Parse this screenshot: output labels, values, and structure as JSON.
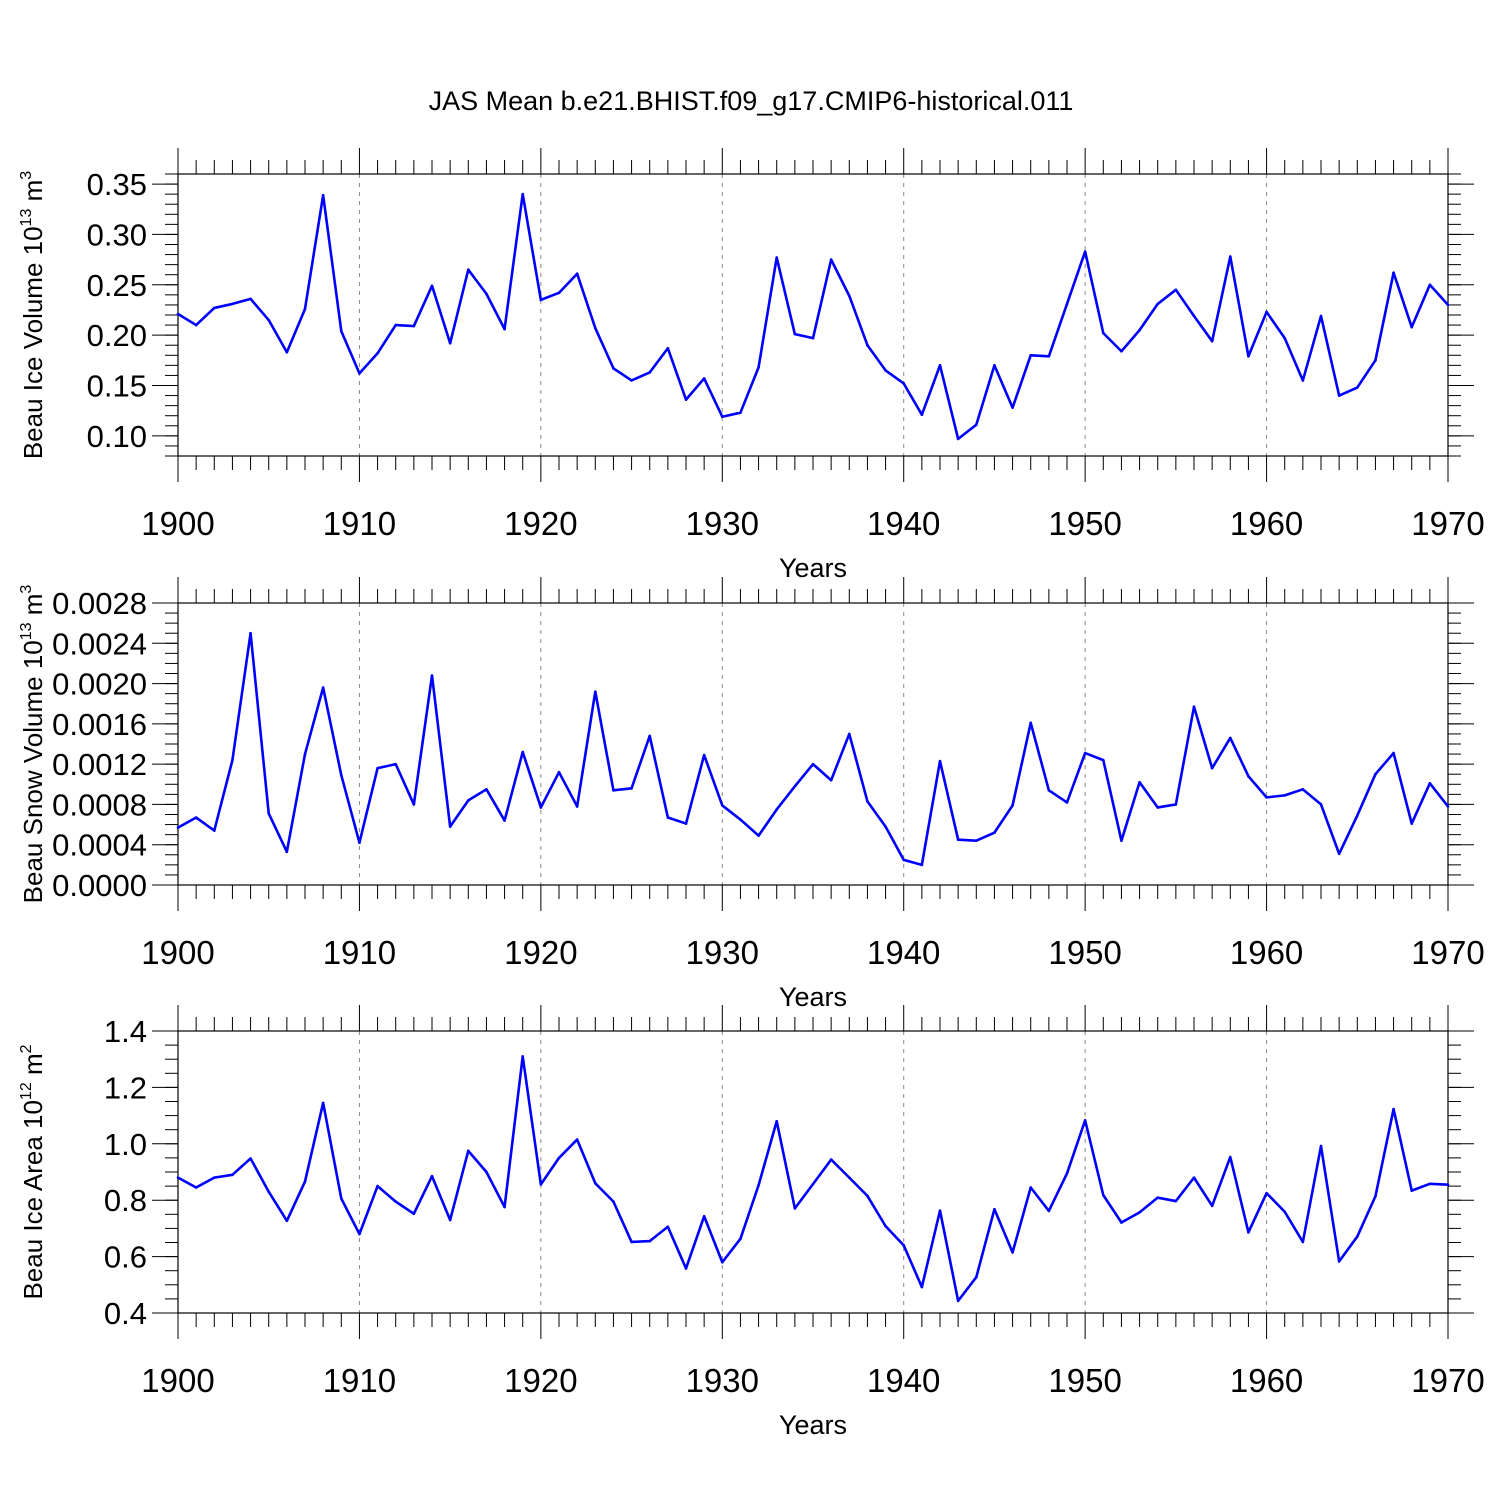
{
  "title": "JAS Mean b.e21.BHIST.f09_g17.CMIP6-historical.011",
  "colors": {
    "line": "#0000ff",
    "axis": "#000000",
    "grid": "#888888"
  },
  "chart_data": [
    {
      "type": "line",
      "ylabel_main": "Beau Ice Volume 10",
      "ylabel_exp": "13",
      "ylabel_unit": " m",
      "ylabel_unit_exp": "3",
      "xlabel": "Years",
      "xlim": [
        1900,
        1970
      ],
      "ylim": [
        0.08,
        0.36
      ],
      "yticks": [
        0.1,
        0.15,
        0.2,
        0.25,
        0.3,
        0.35
      ],
      "ytick_labels": [
        "0.10",
        "0.15",
        "0.20",
        "0.25",
        "0.30",
        "0.35"
      ],
      "yminor": 0.01,
      "xticks": [
        1900,
        1910,
        1920,
        1930,
        1940,
        1950,
        1960,
        1970
      ],
      "xtick_labels": [
        "1900",
        "1910",
        "1920",
        "1930",
        "1940",
        "1950",
        "1960",
        "1970"
      ],
      "x_start": 1900,
      "values": [
        0.221,
        0.21,
        0.227,
        0.231,
        0.236,
        0.215,
        0.183,
        0.226,
        0.339,
        0.204,
        0.162,
        0.182,
        0.21,
        0.209,
        0.249,
        0.192,
        0.265,
        0.241,
        0.206,
        0.34,
        0.235,
        0.242,
        0.261,
        0.207,
        0.167,
        0.155,
        0.163,
        0.187,
        0.136,
        0.157,
        0.119,
        0.123,
        0.168,
        0.277,
        0.201,
        0.197,
        0.275,
        0.239,
        0.19,
        0.165,
        0.152,
        0.121,
        0.17,
        0.097,
        0.111,
        0.17,
        0.128,
        0.18,
        0.179,
        0.231,
        0.283,
        0.202,
        0.184,
        0.205,
        0.231,
        0.245,
        0.219,
        0.194,
        0.278,
        0.179,
        0.223,
        0.197,
        0.155,
        0.219,
        0.14,
        0.148,
        0.175,
        0.262,
        0.208,
        0.25,
        0.23
      ]
    },
    {
      "type": "line",
      "ylabel_main": "Beau Snow Volume 10",
      "ylabel_exp": "13",
      "ylabel_unit": " m",
      "ylabel_unit_exp": "3",
      "xlabel": "Years",
      "xlim": [
        1900,
        1970
      ],
      "ylim": [
        0.0,
        0.0028
      ],
      "yticks": [
        0.0,
        0.0004,
        0.0008,
        0.0012,
        0.0016,
        0.002,
        0.0024,
        0.0028
      ],
      "ytick_labels": [
        "0.0000",
        "0.0004",
        "0.0008",
        "0.0012",
        "0.0016",
        "0.0020",
        "0.0024",
        "0.0028"
      ],
      "yminor": 0.0001,
      "xticks": [
        1900,
        1910,
        1920,
        1930,
        1940,
        1950,
        1960,
        1970
      ],
      "xtick_labels": [
        "1900",
        "1910",
        "1920",
        "1930",
        "1940",
        "1950",
        "1960",
        "1970"
      ],
      "x_start": 1900,
      "values": [
        0.00057,
        0.00067,
        0.00054,
        0.00124,
        0.0025,
        0.00071,
        0.00033,
        0.0013,
        0.00196,
        0.00109,
        0.00042,
        0.00116,
        0.0012,
        0.0008,
        0.00208,
        0.00058,
        0.00084,
        0.00095,
        0.00064,
        0.00132,
        0.00077,
        0.00112,
        0.00078,
        0.00192,
        0.00094,
        0.00096,
        0.00148,
        0.00067,
        0.00061,
        0.00129,
        0.00079,
        0.00065,
        0.00049,
        0.00075,
        0.00098,
        0.0012,
        0.00104,
        0.0015,
        0.00083,
        0.00058,
        0.00025,
        0.0002,
        0.00123,
        0.00045,
        0.00044,
        0.00052,
        0.00079,
        0.00161,
        0.00094,
        0.00082,
        0.00131,
        0.00124,
        0.00044,
        0.00102,
        0.00077,
        0.0008,
        0.00177,
        0.00116,
        0.00146,
        0.00108,
        0.00087,
        0.00089,
        0.00095,
        0.0008,
        0.00031,
        0.00069,
        0.0011,
        0.00131,
        0.00061,
        0.00101,
        0.00078
      ]
    },
    {
      "type": "line",
      "ylabel_main": "Beau Ice Area 10",
      "ylabel_exp": "12",
      "ylabel_unit": " m",
      "ylabel_unit_exp": "2",
      "xlabel": "Years",
      "xlim": [
        1900,
        1970
      ],
      "ylim": [
        0.4,
        1.4
      ],
      "yticks": [
        0.4,
        0.6,
        0.8,
        1.0,
        1.2,
        1.4
      ],
      "ytick_labels": [
        "0.4",
        "0.6",
        "0.8",
        "1.0",
        "1.2",
        "1.4"
      ],
      "yminor": 0.05,
      "xticks": [
        1900,
        1910,
        1920,
        1930,
        1940,
        1950,
        1960,
        1970
      ],
      "xtick_labels": [
        "1900",
        "1910",
        "1920",
        "1930",
        "1940",
        "1950",
        "1960",
        "1970"
      ],
      "x_start": 1900,
      "values": [
        0.88,
        0.845,
        0.88,
        0.89,
        0.948,
        0.83,
        0.727,
        0.866,
        1.145,
        0.806,
        0.68,
        0.85,
        0.795,
        0.752,
        0.885,
        0.73,
        0.975,
        0.9,
        0.776,
        1.31,
        0.856,
        0.95,
        1.015,
        0.86,
        0.795,
        0.652,
        0.655,
        0.706,
        0.558,
        0.743,
        0.58,
        0.663,
        0.853,
        1.08,
        0.771,
        0.857,
        0.944,
        0.88,
        0.815,
        0.708,
        0.64,
        0.492,
        0.763,
        0.443,
        0.527,
        0.768,
        0.615,
        0.845,
        0.762,
        0.895,
        1.083,
        0.818,
        0.721,
        0.757,
        0.809,
        0.797,
        0.88,
        0.78,
        0.953,
        0.686,
        0.825,
        0.759,
        0.652,
        0.992,
        0.583,
        0.671,
        0.814,
        1.123,
        0.834,
        0.858,
        0.855
      ]
    }
  ]
}
